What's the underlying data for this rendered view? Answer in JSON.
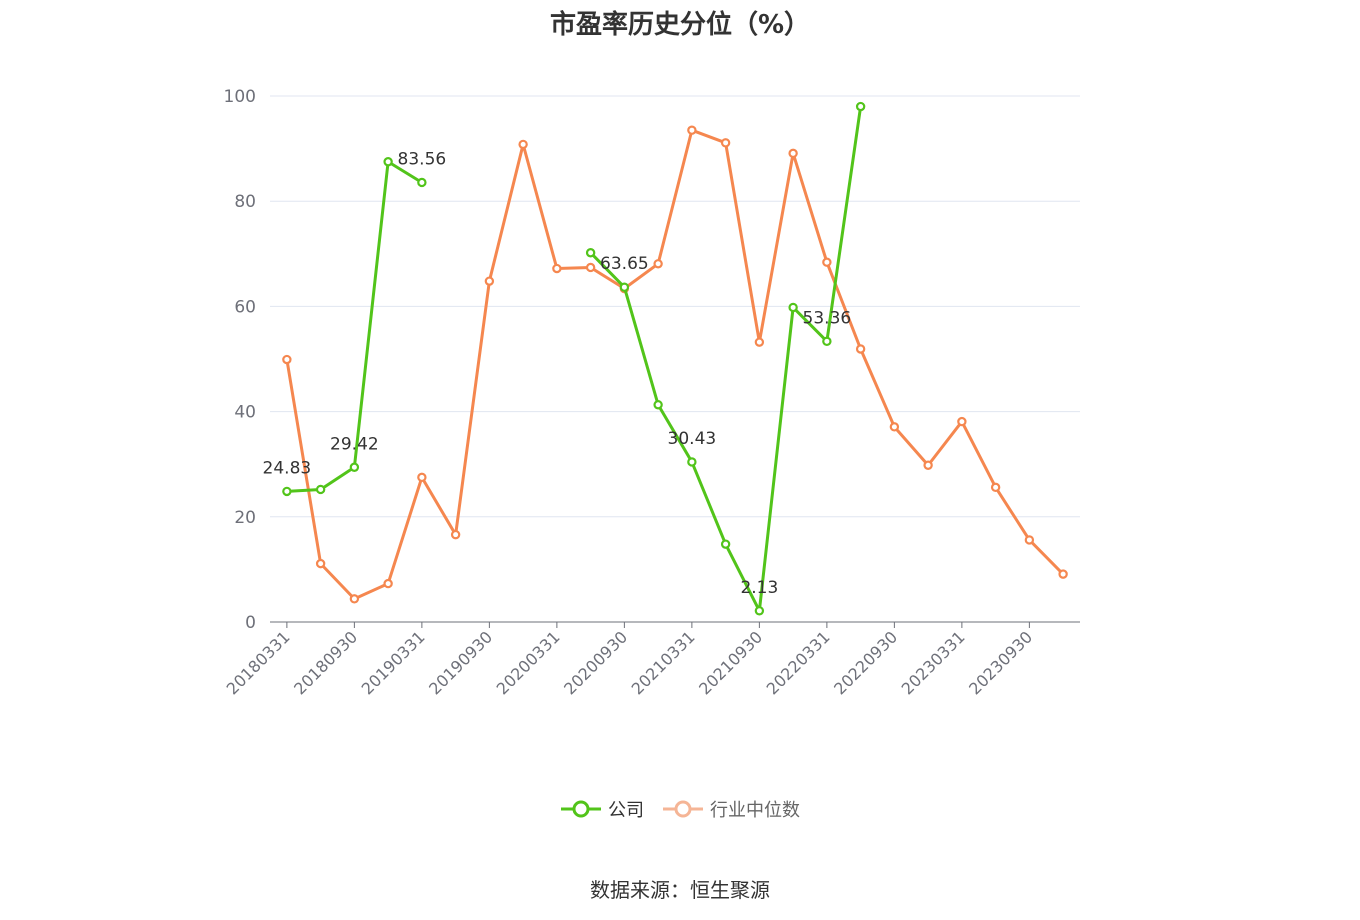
{
  "chart_data": {
    "type": "line",
    "title": "市盈率历史分位（%）",
    "xlabel": "",
    "ylabel": "",
    "ylim": [
      0,
      100
    ],
    "yticks": [
      0,
      20,
      40,
      60,
      80,
      100
    ],
    "x": [
      "20180331",
      "20180630",
      "20180930",
      "20181231",
      "20190331",
      "20190630",
      "20190930",
      "20191231",
      "20200331",
      "20200630",
      "20200930",
      "20201231",
      "20210331",
      "20210630",
      "20210930",
      "20211231",
      "20220331",
      "20220630",
      "20220930",
      "20221231",
      "20230331",
      "20230630",
      "20230930",
      "20231231"
    ],
    "x_tick_labels": [
      "20180331",
      "20180930",
      "20190331",
      "20190930",
      "20200331",
      "20200930",
      "20210331",
      "20210930",
      "20220331",
      "20220930",
      "20230331",
      "20230930"
    ],
    "grid": true,
    "legend_position": "bottom",
    "series": [
      {
        "name": "公司",
        "color": "#52c41a",
        "values": [
          24.83,
          25.2,
          29.42,
          87.5,
          83.56,
          null,
          null,
          null,
          null,
          70.2,
          63.65,
          41.3,
          30.43,
          14.8,
          2.13,
          59.8,
          53.36,
          98.0,
          null,
          null,
          null,
          null,
          null,
          null
        ],
        "labels": {
          "0": "24.83",
          "2": "29.42",
          "4": "83.56",
          "10": "63.65",
          "12": "30.43",
          "14": "2.13",
          "16": "53.36"
        }
      },
      {
        "name": "行业中位数",
        "color": "#f5874f",
        "values": [
          49.9,
          11.1,
          4.4,
          7.3,
          27.5,
          16.6,
          64.8,
          90.8,
          67.2,
          67.4,
          63.4,
          68.1,
          93.5,
          91.1,
          53.2,
          89.1,
          68.4,
          51.9,
          37.1,
          29.8,
          38.1,
          25.6,
          15.6,
          9.1
        ]
      }
    ]
  },
  "legend": {
    "company": "公司",
    "industry": "行业中位数"
  },
  "source": "数据来源：恒生聚源"
}
